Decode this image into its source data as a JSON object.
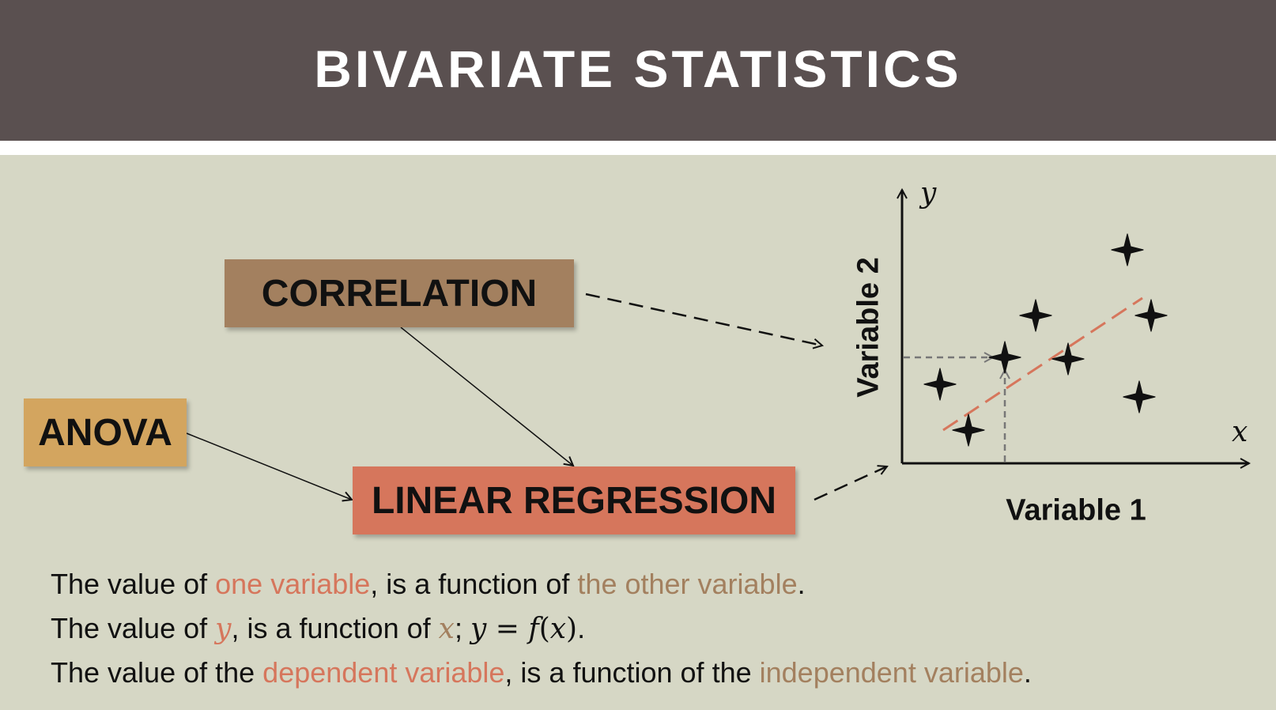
{
  "header": {
    "title": "BIVARIATE STATISTICS"
  },
  "boxes": {
    "correlation": "CORRELATION",
    "anova": "ANOVA",
    "linear_regression": "LINEAR REGRESSION"
  },
  "plot": {
    "y_letter": "y",
    "x_letter": "x",
    "y_axis_label": "Variable 2",
    "x_axis_label": "Variable 1",
    "points_marker": "four-point-star-icon",
    "trend_line_color": "#d6765c"
  },
  "colors": {
    "header_bg": "#5a5050",
    "background": "#d6d7c5",
    "correlation_box": "#a3805f",
    "anova_box": "#d3a55f",
    "linear_regression_box": "#d6765c"
  },
  "text_lines": {
    "line1": {
      "prefix": "The value of ",
      "highlight1": "one variable",
      "middle": ", is a function of ",
      "highlight2": "the other variable",
      "suffix": "."
    },
    "line2": {
      "prefix": "The value of ",
      "var_y": "y",
      "middle": ", is a function of ",
      "var_x": "x",
      "sep": "; ",
      "eq_y": "y",
      "eq_sign": " = ",
      "eq_f": "f",
      "eq_open": "(",
      "eq_x": "x",
      "eq_close": ")",
      "suffix": "."
    },
    "line3": {
      "prefix": "The value of the ",
      "highlight1": "dependent variable",
      "middle": ", is a function of the ",
      "highlight2": "independent variable",
      "suffix": "."
    }
  }
}
